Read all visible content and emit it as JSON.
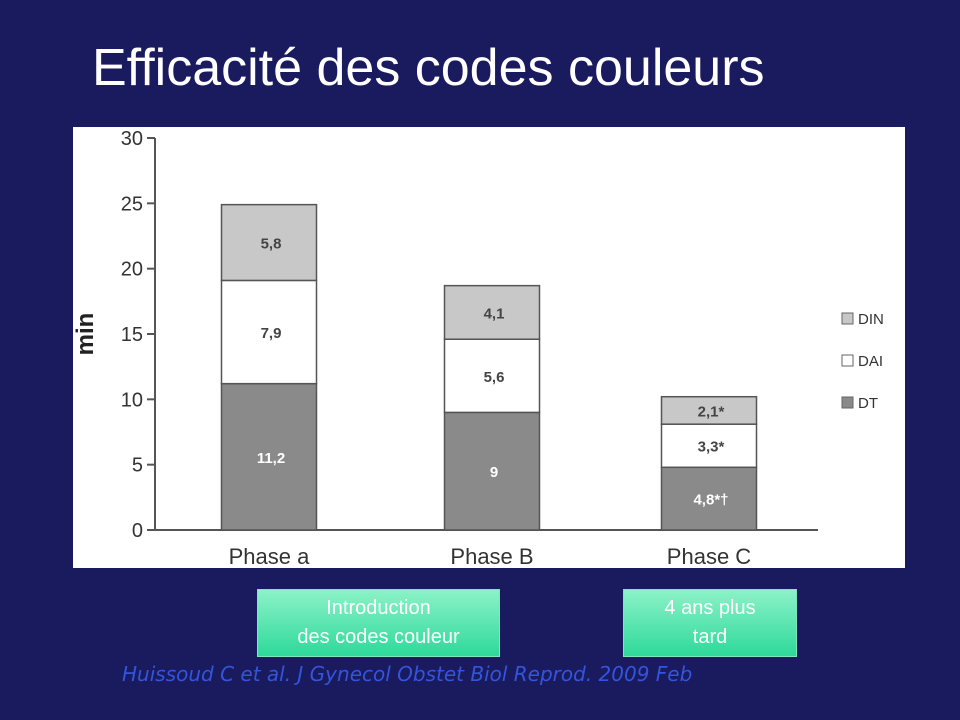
{
  "slide": {
    "title": "Efficacité des codes couleurs",
    "notes": [
      {
        "lines": [
          "Introduction",
          "des codes couleur"
        ]
      },
      {
        "lines": [
          "4 ans plus",
          "tard"
        ]
      }
    ],
    "citation": "Huissoud C et al. J Gynecol Obstet Biol Reprod. 2009 Feb"
  },
  "colors": {
    "background": "#1a1a5e",
    "DIN": "#c8c8c8",
    "DAI": "#ffffff",
    "DT": "#8a8a8a",
    "note_box": "#2ed99a",
    "citation": "#3355dd"
  },
  "chart_data": {
    "type": "bar",
    "stacked": true,
    "categories": [
      "Phase a",
      "Phase B",
      "Phase C"
    ],
    "ylabel": "min",
    "xlabel": "",
    "ylim": [
      0,
      30
    ],
    "yticks": [
      0,
      5,
      10,
      15,
      20,
      25,
      30
    ],
    "grid": false,
    "legend_position": "right",
    "series": [
      {
        "name": "DT",
        "values": [
          11.2,
          9,
          4.8
        ],
        "labels": [
          "11,2",
          "9",
          "4,8*†"
        ]
      },
      {
        "name": "DAI",
        "values": [
          7.9,
          5.6,
          3.3
        ],
        "labels": [
          "7,9",
          "5,6",
          "3,3*"
        ]
      },
      {
        "name": "DIN",
        "values": [
          5.8,
          4.1,
          2.1
        ],
        "labels": [
          "5,8",
          "4,1",
          "2,1*"
        ]
      }
    ],
    "legend": [
      "DIN",
      "DAI",
      "DT"
    ]
  }
}
